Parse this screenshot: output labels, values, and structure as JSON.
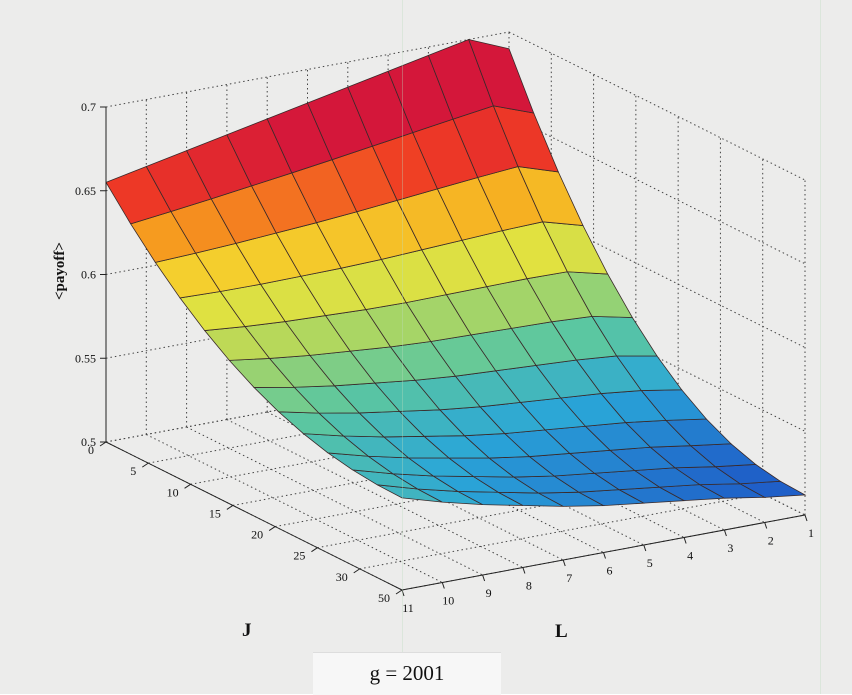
{
  "chart_data": {
    "type": "surface",
    "title": "",
    "caption": "g = 2001",
    "xlabel": "L",
    "ylabel": "J",
    "zlabel": "<payoff>",
    "x_ticks": [
      "1",
      "2",
      "3",
      "4",
      "5",
      "6",
      "7",
      "8",
      "9",
      "10",
      "11"
    ],
    "y_ticks": [
      "0",
      "5",
      "10",
      "15",
      "20",
      "25",
      "30",
      "50"
    ],
    "z_ticks": [
      "0.5",
      "0.55",
      "0.6",
      "0.65",
      "0.7"
    ],
    "zlim": [
      0.5,
      0.7
    ],
    "grid": true,
    "colormap": "jet",
    "surface_profile": {
      "L": [
        11,
        10,
        9,
        8,
        7,
        6,
        5,
        4,
        3,
        2,
        1
      ],
      "payoff_at_J0": [
        0.655,
        0.66,
        0.665,
        0.67,
        0.675,
        0.68,
        0.685,
        0.69,
        0.695,
        0.7,
        0.69
      ],
      "payoff_at_J50": [
        0.555,
        0.548,
        0.542,
        0.537,
        0.532,
        0.528,
        0.525,
        0.522,
        0.519,
        0.515,
        0.512
      ]
    }
  }
}
